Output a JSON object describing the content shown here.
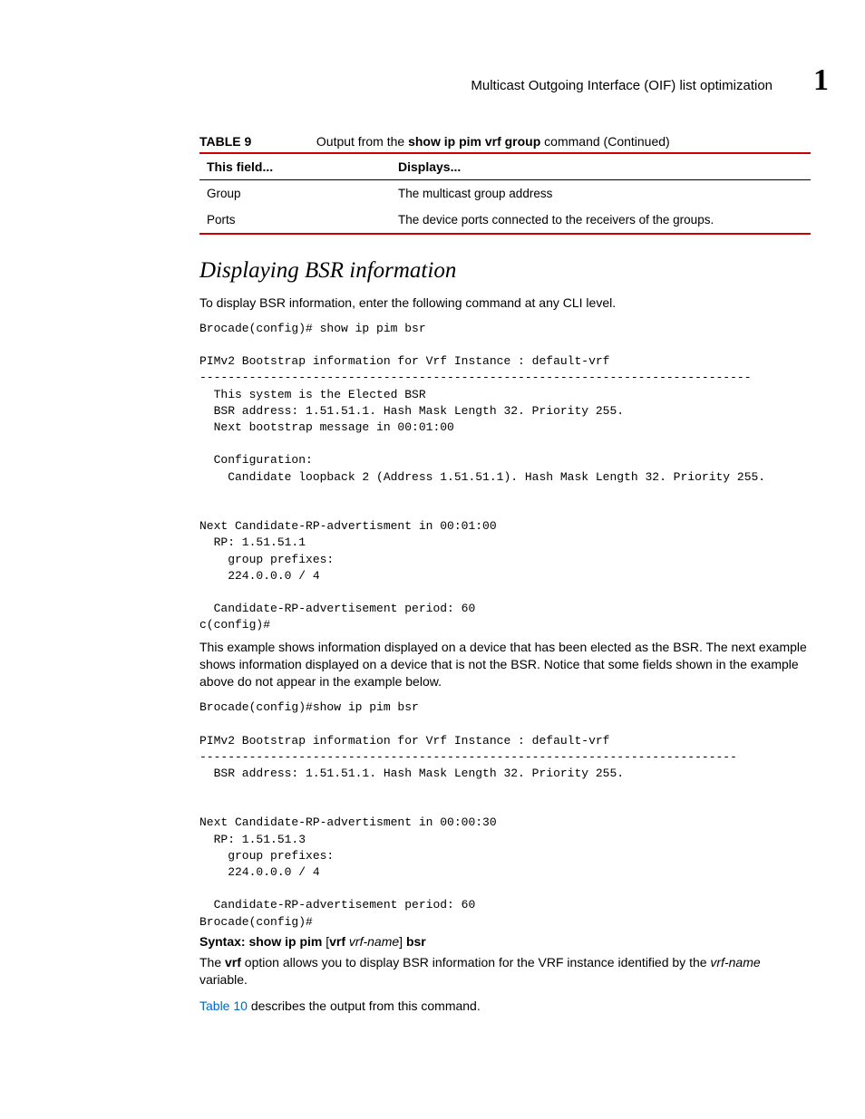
{
  "header": {
    "title": "Multicast Outgoing Interface (OIF) list optimization",
    "chapter_number": "1"
  },
  "table": {
    "label": "TABLE 9",
    "title_prefix": "Output from the ",
    "title_cmd": "show ip pim vrf group",
    "title_suffix": " command (Continued)",
    "columns": [
      "This field...",
      "Displays..."
    ],
    "rows": [
      [
        "Group",
        "The multicast group address"
      ],
      [
        "Ports",
        "The device ports connected to the receivers of the groups."
      ]
    ]
  },
  "section": {
    "title": "Displaying BSR information",
    "intro": "To display BSR information, enter the following command at any CLI level.",
    "code1": "Brocade(config)# show ip pim bsr\n\nPIMv2 Bootstrap information for Vrf Instance : default-vrf\n------------------------------------------------------------------------------\n  This system is the Elected BSR\n  BSR address: 1.51.51.1. Hash Mask Length 32. Priority 255.\n  Next bootstrap message in 00:01:00\n\n  Configuration:\n    Candidate loopback 2 (Address 1.51.51.1). Hash Mask Length 32. Priority 255.\n\n\nNext Candidate-RP-advertisment in 00:01:00\n  RP: 1.51.51.1\n    group prefixes:\n    224.0.0.0 / 4\n\n  Candidate-RP-advertisement period: 60\nc(config)#",
    "mid_para": "This example shows information displayed on a device that has been elected as the BSR. The next example shows information displayed on a device that is not the BSR. Notice that some fields shown in the example above do not appear in the example below.",
    "code2": "Brocade(config)#show ip pim bsr\n\nPIMv2 Bootstrap information for Vrf Instance : default-vrf\n----------------------------------------------------------------------------\n  BSR address: 1.51.51.1. Hash Mask Length 32. Priority 255.\n\n\nNext Candidate-RP-advertisment in 00:00:30\n  RP: 1.51.51.3\n    group prefixes:\n    224.0.0.0 / 4\n\n  Candidate-RP-advertisement period: 60\nBrocade(config)#",
    "syntax": {
      "label": "Syntax:",
      "cmd1": "show ip pim",
      "bracket_open": " [",
      "vrf": "vrf",
      "vrf_name": " vrf-name",
      "bracket_close": "] ",
      "bsr": "bsr"
    },
    "para_vrf_1": "The ",
    "para_vrf_bold": "vrf",
    "para_vrf_2": " option allows you to display BSR information for the VRF instance identified by the ",
    "para_vrf_italic": "vrf-name",
    "para_vrf_3": " variable.",
    "para_table_link": "Table 10",
    "para_table_rest": " describes the output from this command."
  }
}
